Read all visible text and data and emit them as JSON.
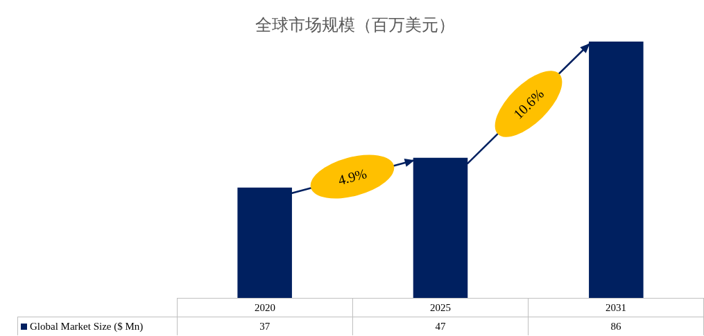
{
  "chart_data": {
    "type": "bar",
    "title": "全球市场规模（百万美元）",
    "categories": [
      "2020",
      "2025",
      "2031"
    ],
    "series": [
      {
        "name": "Global Market Size ($ Mn)",
        "color": "#002060",
        "values": [
          37,
          47,
          86
        ]
      }
    ],
    "data_labels": true,
    "legend": "bottom",
    "annotations": [
      "4.9%",
      "10.6%"
    ]
  }
}
